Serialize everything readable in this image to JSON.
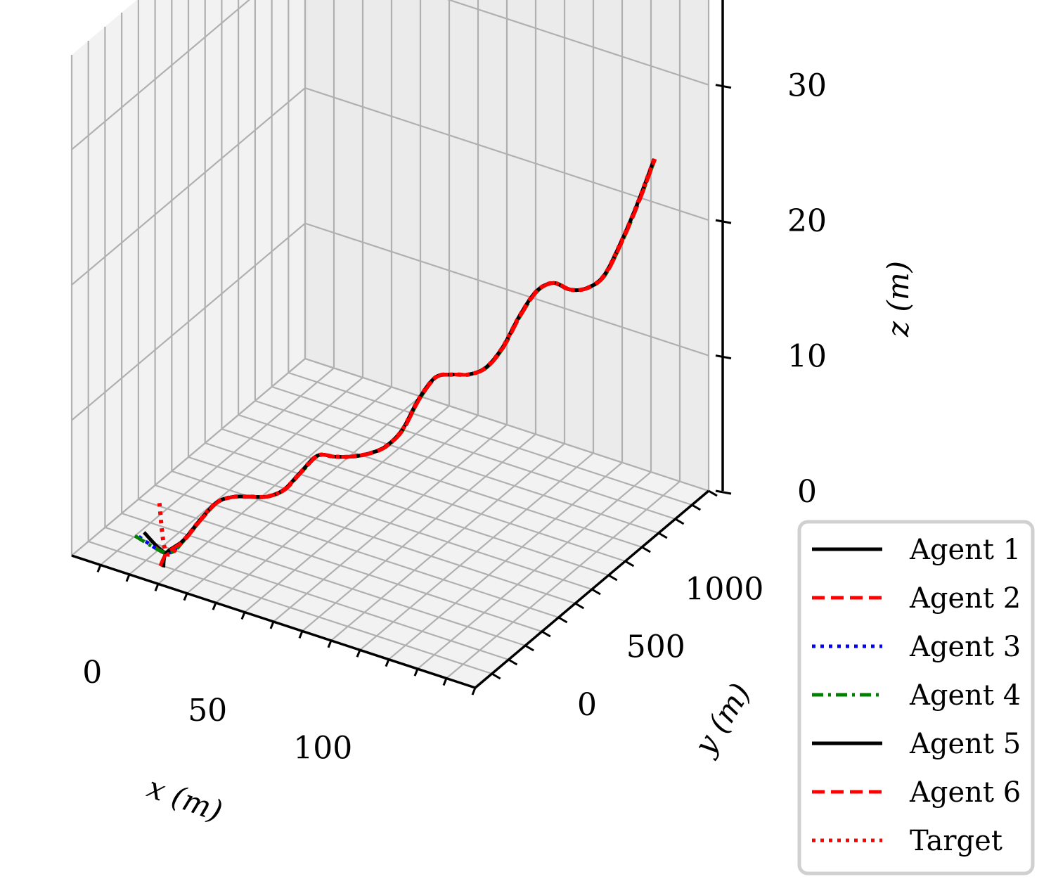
{
  "chart_data": {
    "type": "line",
    "projection": "3d",
    "title": "",
    "xlabel": "x (m)",
    "ylabel": "y (m)",
    "zlabel": "z (m)",
    "xlim": [
      -15,
      160
    ],
    "ylim": [
      -200,
      1500
    ],
    "zlim": [
      0,
      37
    ],
    "x_ticks": [
      0,
      50,
      100
    ],
    "y_ticks": [
      0,
      500,
      1000
    ],
    "z_ticks": [
      0,
      10,
      20,
      30
    ],
    "grid": true,
    "legend_position": "lower-right",
    "series": [
      {
        "name": "Agent 1",
        "color": "#000000",
        "dash": "solid",
        "width": 5
      },
      {
        "name": "Agent 2",
        "color": "#ff0000",
        "dash": "dashed",
        "width": 5
      },
      {
        "name": "Agent 3",
        "color": "#0000ff",
        "dash": "dotted",
        "width": 5
      },
      {
        "name": "Agent 4",
        "color": "#008000",
        "dash": "dashdot",
        "width": 5
      },
      {
        "name": "Agent 5",
        "color": "#000000",
        "dash": "solid",
        "width": 5
      },
      {
        "name": "Agent 6",
        "color": "#ff0000",
        "dash": "dashed",
        "width": 5
      },
      {
        "name": "Target",
        "color": "#ff0000",
        "dash": "dotted",
        "width": 6
      }
    ],
    "trajectory_points_x_y_z": [
      [
        16.2,
        -32,
        0.5
      ],
      [
        20.4,
        20,
        1.2
      ],
      [
        24.6,
        72,
        2.5
      ],
      [
        28.8,
        124,
        3.6
      ],
      [
        33,
        176,
        3.8
      ],
      [
        37.2,
        228,
        3.6
      ],
      [
        41.4,
        280,
        3.4
      ],
      [
        45.6,
        332,
        3.7
      ],
      [
        49.8,
        384,
        4.8
      ],
      [
        54,
        436,
        5.8
      ],
      [
        58.2,
        488,
        5.5
      ],
      [
        62.4,
        540,
        5.3
      ],
      [
        66.6,
        592,
        5.3
      ],
      [
        70.8,
        644,
        5.6
      ],
      [
        75,
        696,
        6.6
      ],
      [
        79.2,
        748,
        8.7
      ],
      [
        83.4,
        800,
        10.1
      ],
      [
        87.6,
        852,
        10.1
      ],
      [
        91.8,
        904,
        9.9
      ],
      [
        96,
        956,
        10.2
      ],
      [
        100.2,
        1008,
        11.5
      ],
      [
        104.4,
        1060,
        13.6
      ],
      [
        108.6,
        1112,
        15.2
      ],
      [
        112.8,
        1164,
        15.6
      ],
      [
        117,
        1216,
        14.9
      ],
      [
        121.2,
        1268,
        14.8
      ],
      [
        125.4,
        1320,
        15.5
      ],
      [
        129.6,
        1372,
        17.7
      ],
      [
        133.8,
        1424,
        20.4
      ],
      [
        138,
        1476,
        23.5
      ]
    ],
    "agent_start_offsets": [
      {
        "name": "Agent 1",
        "start": [
          8,
          -60,
          1.8
        ]
      },
      {
        "name": "Agent 2",
        "start": [
          14,
          -80,
          1.2
        ]
      },
      {
        "name": "Agent 3",
        "start": [
          4,
          -30,
          1.0
        ]
      },
      {
        "name": "Agent 4",
        "start": [
          2,
          -25,
          0.9
        ]
      },
      {
        "name": "Agent 5",
        "start": [
          20,
          -120,
          0.4
        ]
      },
      {
        "name": "Agent 6",
        "start": [
          18,
          -110,
          0.3
        ]
      },
      {
        "name": "Target",
        "start": [
          12,
          -15,
          3.8
        ]
      }
    ]
  }
}
